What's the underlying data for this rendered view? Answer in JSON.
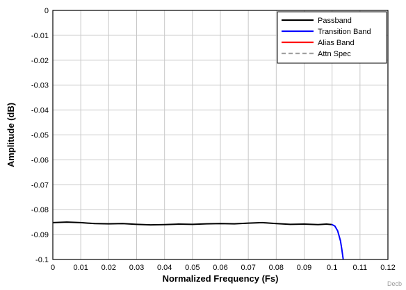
{
  "chart_data": {
    "type": "line",
    "title": "",
    "xlabel": "Normalized Frequency (Fs)",
    "ylabel": "Amplitude (dB)",
    "xlim": [
      0,
      0.12
    ],
    "ylim": [
      -0.1,
      0
    ],
    "x_ticks": [
      0,
      0.01,
      0.02,
      0.03,
      0.04,
      0.05,
      0.06,
      0.07,
      0.08,
      0.09,
      0.1,
      0.11,
      0.12
    ],
    "x_tick_labels": [
      "0",
      "0.01",
      "0.02",
      "0.03",
      "0.04",
      "0.05",
      "0.06",
      "0.07",
      "0.08",
      "0.09",
      "0.1",
      "0.11",
      "0.12"
    ],
    "y_ticks": [
      0,
      -0.01,
      -0.02,
      -0.03,
      -0.04,
      -0.05,
      -0.06,
      -0.07,
      -0.08,
      -0.09,
      -0.1
    ],
    "y_tick_labels": [
      "0",
      "-0.01",
      "-0.02",
      "-0.03",
      "-0.04",
      "-0.05",
      "-0.06",
      "-0.07",
      "-0.08",
      "-0.09",
      "-0.1"
    ],
    "grid": true,
    "legend_position": "top-right",
    "series": [
      {
        "name": "Passband",
        "color": "#000000",
        "dash": "solid",
        "x": [
          0,
          0.005,
          0.01,
          0.015,
          0.02,
          0.025,
          0.03,
          0.035,
          0.04,
          0.045,
          0.05,
          0.055,
          0.06,
          0.065,
          0.07,
          0.075,
          0.08,
          0.085,
          0.09,
          0.095,
          0.098,
          0.1
        ],
        "y": [
          -0.0852,
          -0.085,
          -0.0852,
          -0.0856,
          -0.0857,
          -0.0856,
          -0.0859,
          -0.0861,
          -0.086,
          -0.0858,
          -0.0859,
          -0.0857,
          -0.0856,
          -0.0857,
          -0.0854,
          -0.0852,
          -0.0856,
          -0.0859,
          -0.0858,
          -0.086,
          -0.0858,
          -0.086
        ]
      },
      {
        "name": "Transition Band",
        "color": "#0000ff",
        "dash": "solid",
        "x": [
          0.1,
          0.101,
          0.102,
          0.103,
          0.1035,
          0.104
        ],
        "y": [
          -0.086,
          -0.0866,
          -0.0885,
          -0.0925,
          -0.096,
          -0.1
        ]
      },
      {
        "name": "Alias Band",
        "color": "#ff0000",
        "dash": "solid",
        "x": [],
        "y": []
      },
      {
        "name": "Attn Spec",
        "color": "#a0a0a0",
        "dash": "dashed",
        "x": [],
        "y": []
      }
    ],
    "watermark": "Decb"
  }
}
